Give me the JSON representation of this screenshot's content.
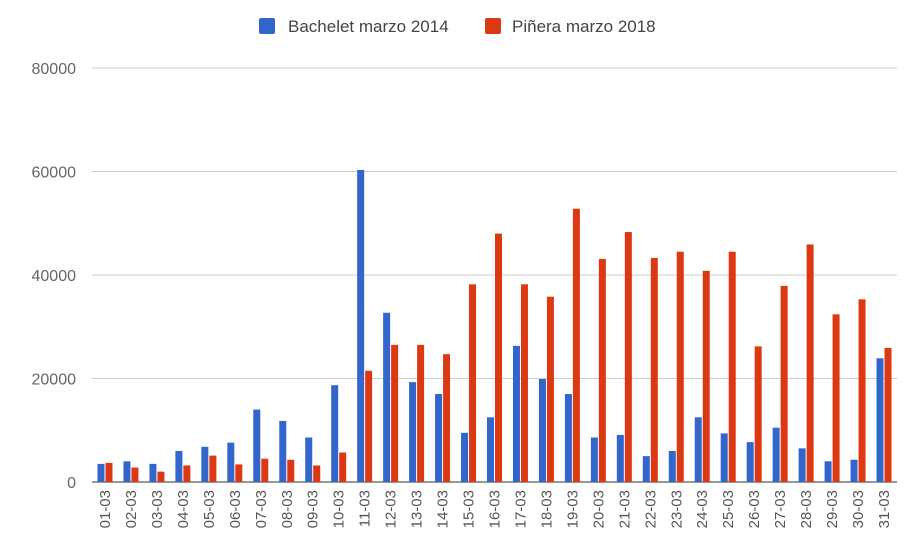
{
  "chart_data": {
    "type": "bar",
    "categories": [
      "01-03",
      "02-03",
      "03-03",
      "04-03",
      "05-03",
      "06-03",
      "07-03",
      "08-03",
      "09-03",
      "10-03",
      "11-03",
      "12-03",
      "13-03",
      "14-03",
      "15-03",
      "16-03",
      "17-03",
      "18-03",
      "19-03",
      "20-03",
      "21-03",
      "22-03",
      "23-03",
      "24-03",
      "25-03",
      "26-03",
      "27-03",
      "28-03",
      "29-03",
      "30-03",
      "31-03"
    ],
    "series": [
      {
        "name": "Bachelet marzo 2014",
        "color": "#3366cc",
        "values": [
          3500,
          4000,
          3500,
          6000,
          6800,
          7600,
          14000,
          11800,
          8600,
          18700,
          60300,
          32700,
          19300,
          17000,
          9500,
          12500,
          26300,
          19900,
          17000,
          8600,
          9100,
          5000,
          6000,
          12500,
          9400,
          7700,
          10500,
          6500,
          4000,
          4300,
          23900
        ]
      },
      {
        "name": "Piñera marzo 2018",
        "color": "#dc3912",
        "values": [
          3700,
          2800,
          2000,
          3200,
          5100,
          3400,
          4500,
          4300,
          3200,
          5700,
          21500,
          26500,
          26500,
          24700,
          38200,
          48000,
          38200,
          35800,
          52800,
          43100,
          48300,
          43300,
          44500,
          40800,
          44500,
          26200,
          37900,
          45900,
          32400,
          35300,
          25900
        ]
      }
    ],
    "title": "",
    "xlabel": "",
    "ylabel": "",
    "ylim": [
      0,
      80000
    ],
    "yticks": [
      "0",
      "20000",
      "40000",
      "60000",
      "80000"
    ],
    "grid": true,
    "legend_position": "top-center"
  }
}
